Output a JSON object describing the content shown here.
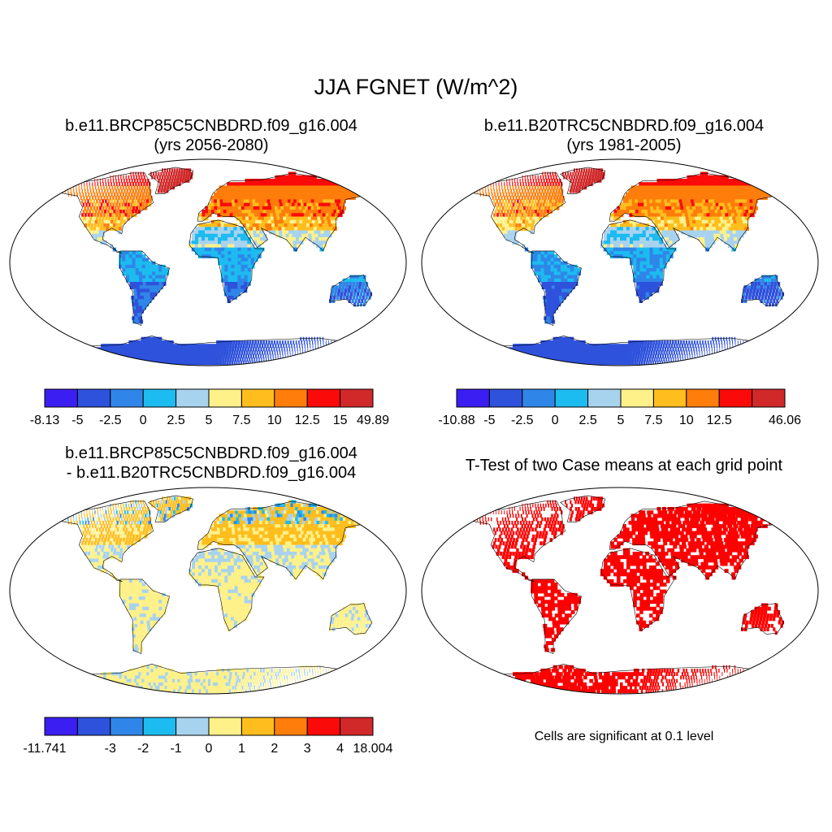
{
  "title": "JJA FGNET (W/m^2)",
  "panels": [
    {
      "title_line1": "b.e11.BRCP85C5CNBDRD.f09_g16.004",
      "title_line2": "(yrs 2056-2080)",
      "scheme": "warm"
    },
    {
      "title_line1": "b.e11.B20TRC5CNBDRD.f09_g16.004",
      "title_line2": "(yrs 1981-2005)",
      "scheme": "warm"
    },
    {
      "title_line1": "b.e11.BRCP85C5CNBDRD.f09_g16.004",
      "title_line2": "- b.e11.B20TRC5CNBDRD.f09_g16.004",
      "scheme": "diff"
    },
    {
      "title_line1": "T-Test of two Case means at each grid point",
      "title_line2": "",
      "scheme": "ttest"
    }
  ],
  "colorbars": [
    {
      "colors": [
        "#3b1ff2",
        "#2f52dc",
        "#2f86e8",
        "#1cbbf0",
        "#a8d3ef",
        "#fef18a",
        "#ffbe1e",
        "#ff7d0a",
        "#fb0a0a",
        "#d1282a"
      ],
      "labels": [
        "-8.13",
        "-5",
        "-2.5",
        "0",
        "2.5",
        "5",
        "7.5",
        "10",
        "12.5",
        "15",
        "49.89"
      ]
    },
    {
      "colors": [
        "#3b1ff2",
        "#2f52dc",
        "#2f86e8",
        "#1cbbf0",
        "#a8d3ef",
        "#fef18a",
        "#ffbe1e",
        "#ff7d0a",
        "#fb0a0a",
        "#d1282a"
      ],
      "labels": [
        "-10.88",
        "-5",
        "-2.5",
        "0",
        "2.5",
        "5",
        "7.5",
        "10",
        "12.5",
        "",
        "46.06"
      ]
    },
    {
      "colors": [
        "#3b1ff2",
        "#2f52dc",
        "#2f86e8",
        "#1cbbf0",
        "#a8d3ef",
        "#fef18a",
        "#ffbe1e",
        "#ff7d0a",
        "#fb0a0a",
        "#d1282a"
      ],
      "labels": [
        "-11.741",
        "",
        "-3",
        "-2",
        "-1",
        "0",
        "1",
        "2",
        "3",
        "4",
        "18.004"
      ]
    }
  ],
  "note": "Cells are significant at 0.1 level",
  "colors": {
    "significant": "#ff0000",
    "outline": "#000000"
  }
}
